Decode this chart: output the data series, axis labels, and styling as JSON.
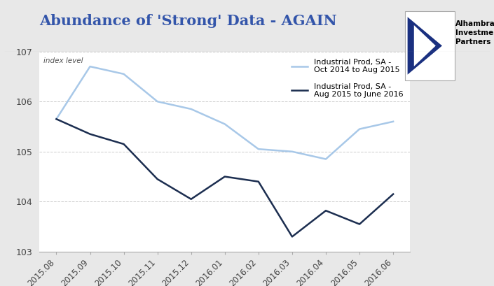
{
  "title": "Abundance of 'Strong' Data - AGAIN",
  "ylabel_annotation": "index level",
  "background_color": "#e8e8e8",
  "plot_bg_color": "#ffffff",
  "series1": {
    "label": "Industrial Prod, SA -\nOct 2014 to Aug 2015",
    "color": "#a8c8e8",
    "linewidth": 1.8,
    "y": [
      105.65,
      106.7,
      106.55,
      106.0,
      105.85,
      105.55,
      105.05,
      105.0,
      104.85,
      105.45,
      105.6
    ]
  },
  "series2": {
    "label": "Industrial Prod, SA -\nAug 2015 to June 2016",
    "color": "#1c2e50",
    "linewidth": 1.8,
    "y": [
      105.65,
      105.35,
      105.15,
      104.45,
      104.05,
      104.5,
      104.4,
      103.3,
      103.82,
      103.55,
      104.15
    ]
  },
  "xlabels": [
    "2015.08",
    "2015.09",
    "2015.10",
    "2015.11",
    "2015.12",
    "2016.01",
    "2016.02",
    "2016.03",
    "2016.04",
    "2016.05",
    "2016.06"
  ],
  "ylim": [
    103,
    107
  ],
  "yticks": [
    103,
    104,
    105,
    106,
    107
  ],
  "grid_color": "#cccccc",
  "title_color": "#3355aa",
  "title_fontsize": 15,
  "logo_text": "Alhambra\nInvestment\nPartners",
  "logo_box_color": "#1a3080"
}
